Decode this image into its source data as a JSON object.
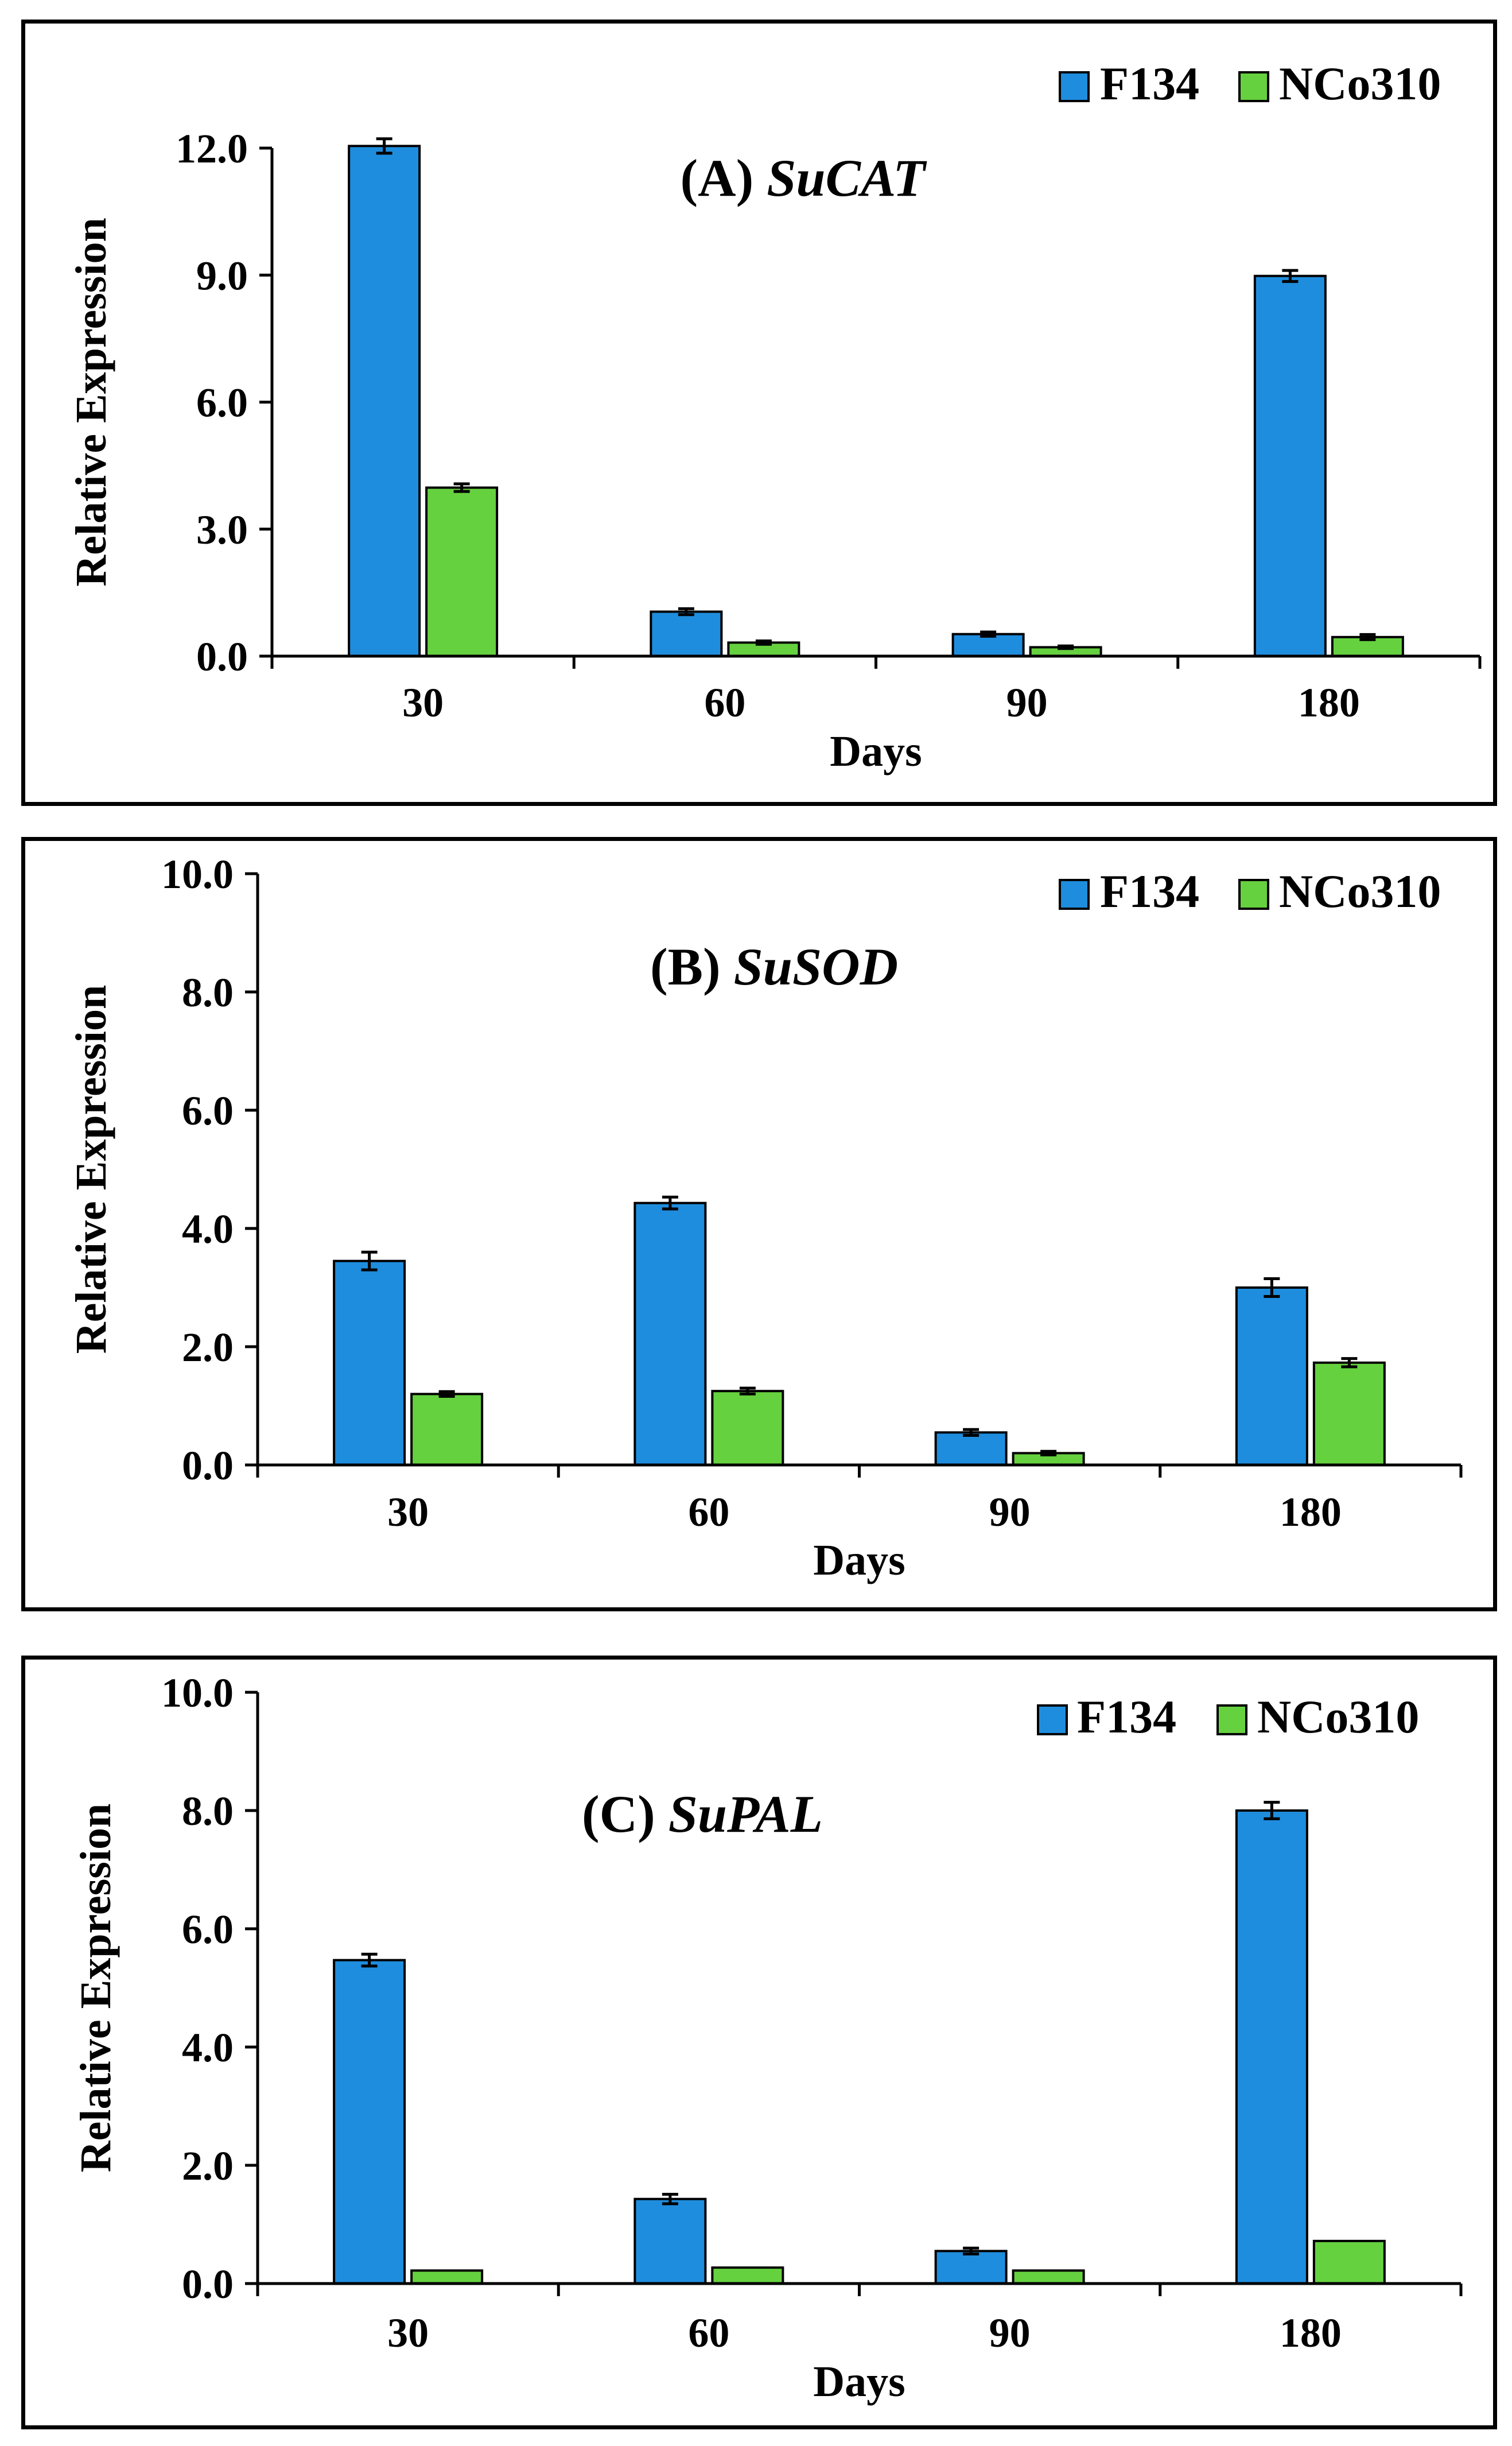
{
  "chart_data": [
    {
      "type": "bar",
      "panel_label": "(A)",
      "gene": "SuCAT",
      "title": "(A) SuCAT",
      "xlabel": "Days",
      "ylabel": "Relative Expression",
      "categories": [
        "30",
        "60",
        "90",
        "180"
      ],
      "ylim": [
        0,
        12
      ],
      "yticks": [
        "0.0",
        "3.0",
        "6.0",
        "9.0",
        "12.0"
      ],
      "yticks_values": [
        0,
        3,
        6,
        9,
        12
      ],
      "legend_position": "top-right",
      "grid": false,
      "series": [
        {
          "name": "F134",
          "color": "#1F8DDD",
          "values": [
            12.05,
            1.05,
            0.52,
            8.98
          ],
          "errors": [
            0.17,
            0.07,
            0.05,
            0.13
          ]
        },
        {
          "name": "NCo310",
          "color": "#66D13F",
          "values": [
            3.98,
            0.32,
            0.21,
            0.45
          ],
          "errors": [
            0.09,
            0.04,
            0.03,
            0.06
          ]
        }
      ]
    },
    {
      "type": "bar",
      "panel_label": "(B)",
      "gene": "SuSOD",
      "title": "(B) SuSOD",
      "xlabel": "Days",
      "ylabel": "Relative Expression",
      "categories": [
        "30",
        "60",
        "90",
        "180"
      ],
      "ylim": [
        0,
        10
      ],
      "yticks": [
        "0.0",
        "2.0",
        "4.0",
        "6.0",
        "8.0",
        "10.0"
      ],
      "yticks_values": [
        0,
        2,
        4,
        6,
        8,
        10
      ],
      "legend_position": "top-right",
      "grid": false,
      "series": [
        {
          "name": "F134",
          "color": "#1F8DDD",
          "values": [
            3.45,
            4.43,
            0.55,
            3.0
          ],
          "errors": [
            0.15,
            0.1,
            0.05,
            0.15
          ]
        },
        {
          "name": "NCo310",
          "color": "#66D13F",
          "values": [
            1.2,
            1.25,
            0.2,
            1.73
          ],
          "errors": [
            0.04,
            0.05,
            0.03,
            0.07
          ]
        }
      ]
    },
    {
      "type": "bar",
      "panel_label": "(C)",
      "gene": "SuPAL",
      "title": "(C) SuPAL",
      "xlabel": "Days",
      "ylabel": "Relative Expression",
      "categories": [
        "30",
        "60",
        "90",
        "180"
      ],
      "ylim": [
        0,
        10
      ],
      "yticks": [
        "0.0",
        "2.0",
        "4.0",
        "6.0",
        "8.0",
        "10.0"
      ],
      "yticks_values": [
        0,
        2,
        4,
        6,
        8,
        10
      ],
      "legend_position": "top-right",
      "grid": false,
      "series": [
        {
          "name": "F134",
          "color": "#1F8DDD",
          "values": [
            5.47,
            1.43,
            0.55,
            8.0
          ],
          "errors": [
            0.1,
            0.08,
            0.05,
            0.14
          ]
        },
        {
          "name": "NCo310",
          "color": "#66D13F",
          "values": [
            0.22,
            0.27,
            0.22,
            0.72
          ],
          "errors": [
            0,
            0,
            0,
            0
          ]
        }
      ]
    }
  ]
}
